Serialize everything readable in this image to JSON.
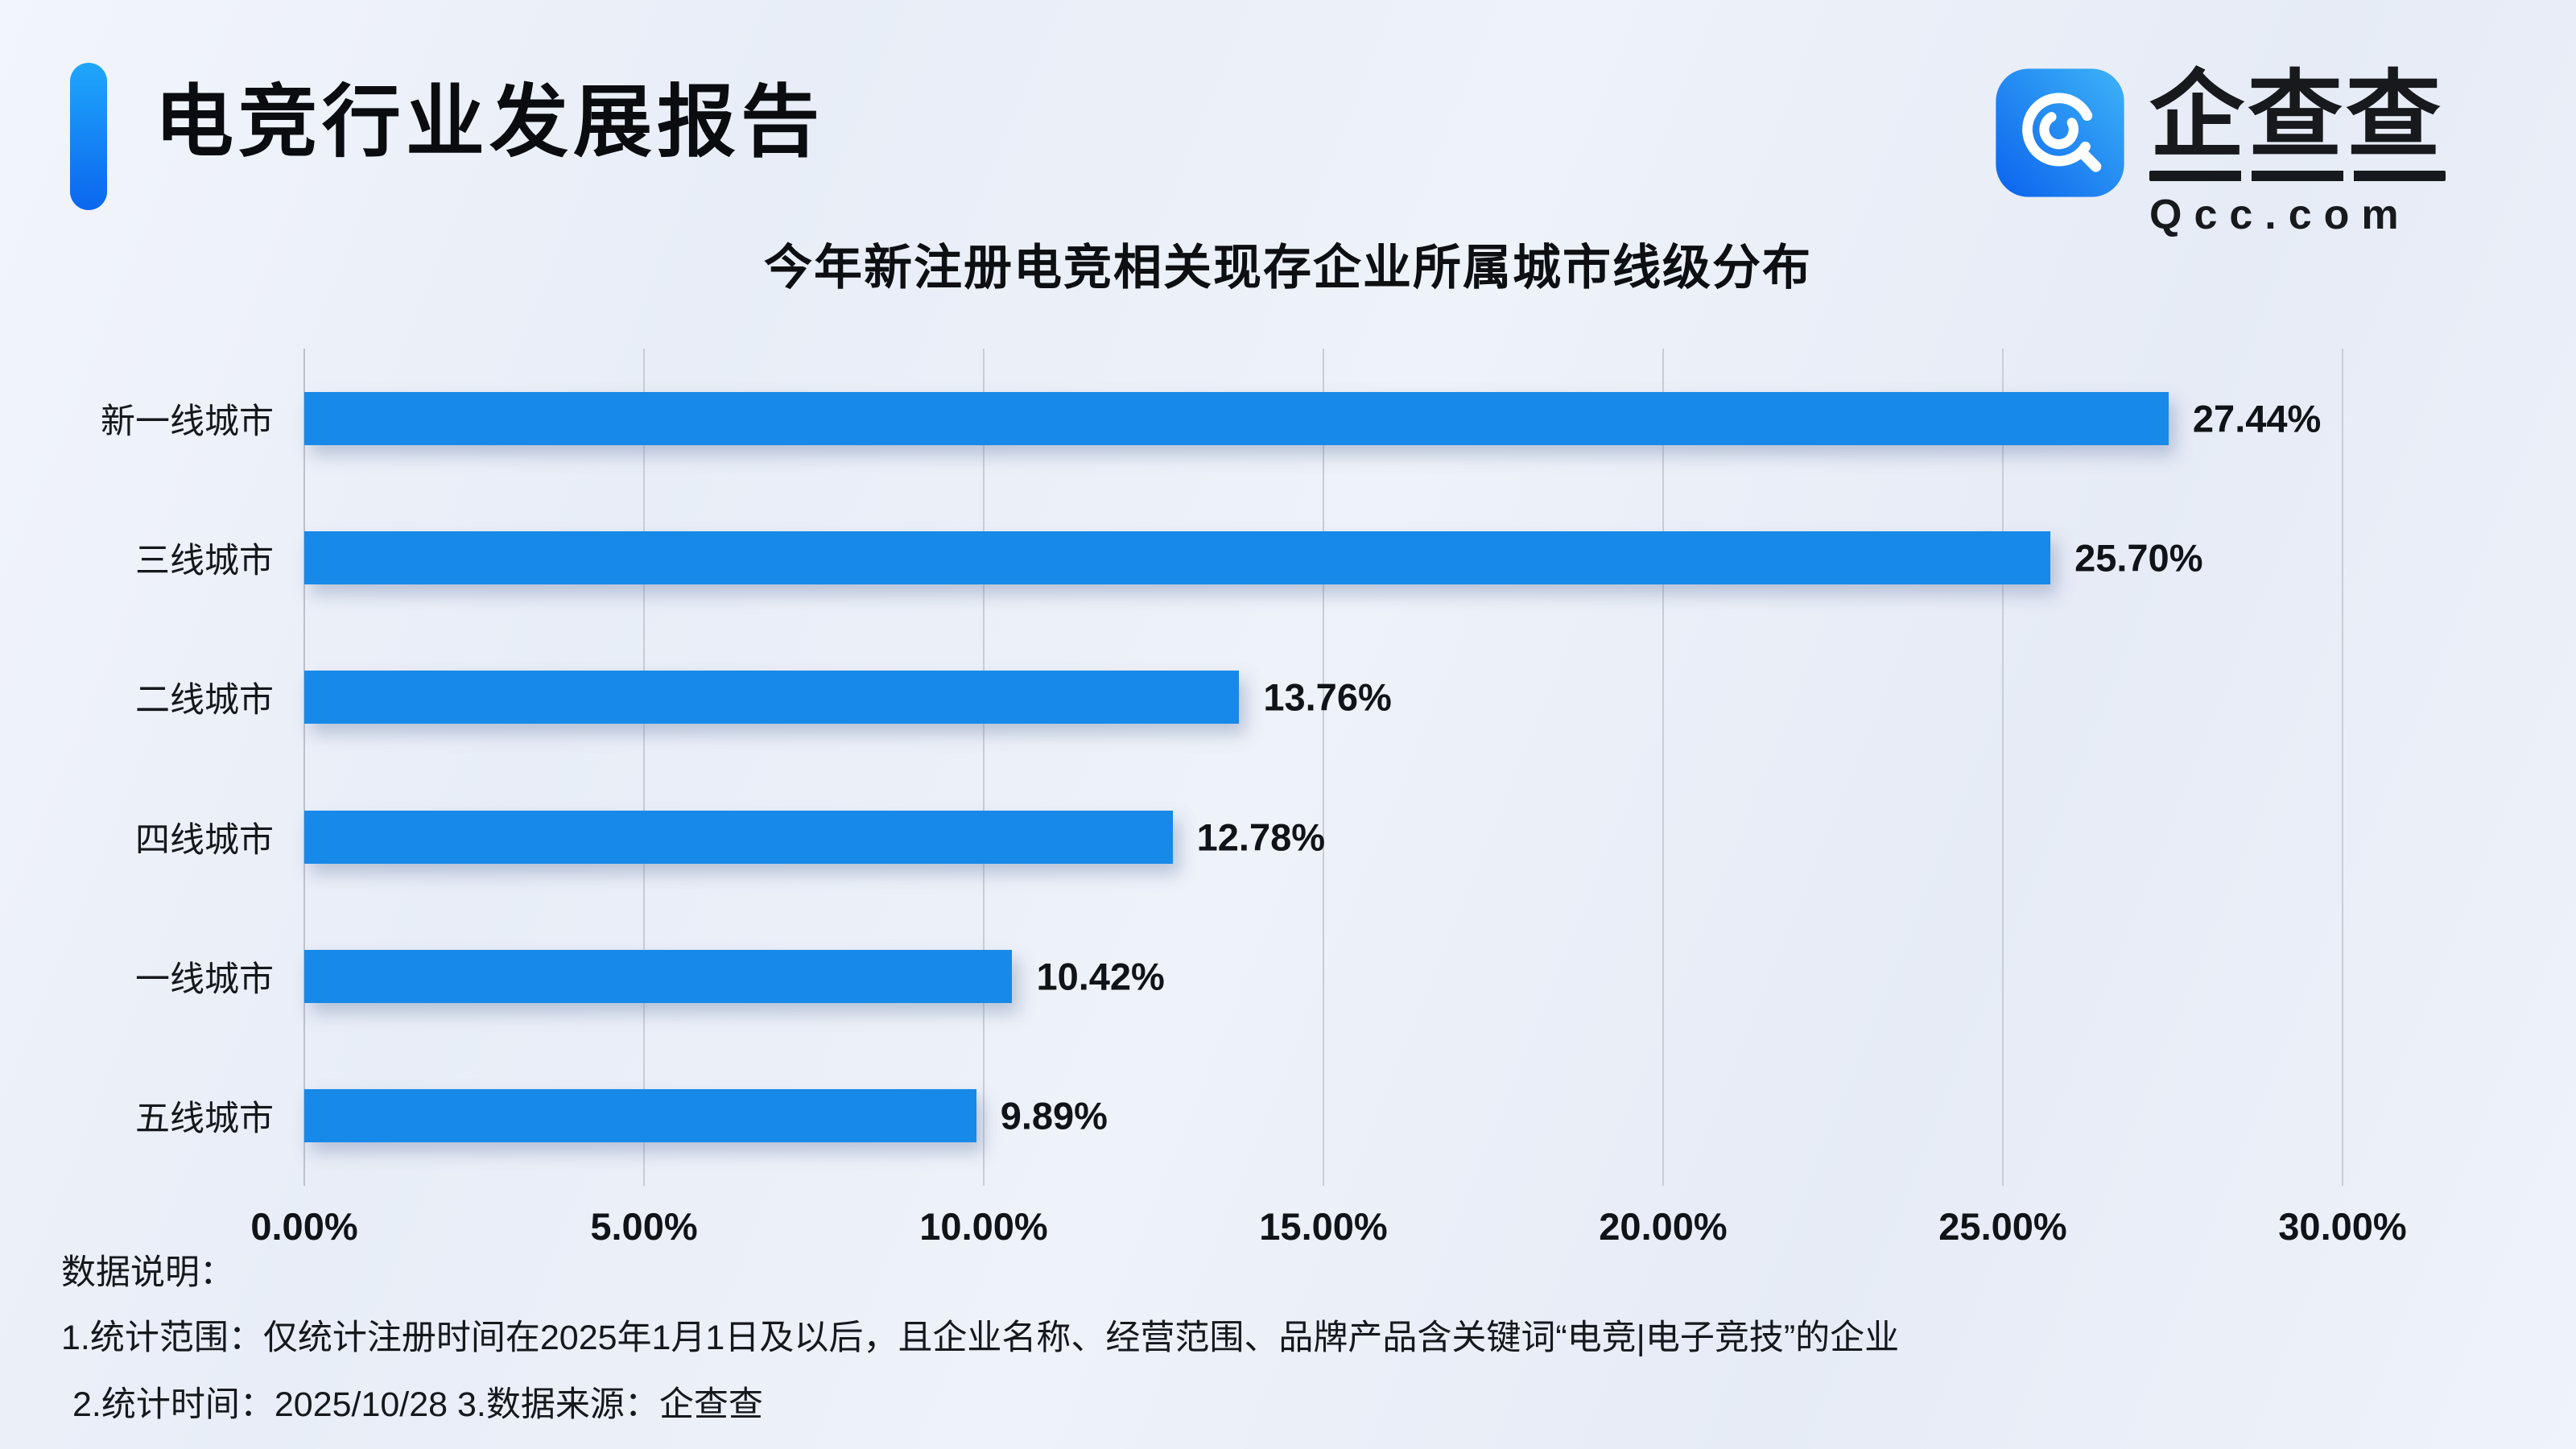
{
  "page": {
    "report_title": "电竞行业发展报告",
    "logo": {
      "brand_text": "企查查",
      "brand_url_text": "Qcc.com"
    },
    "notes": {
      "heading": "数据说明：",
      "line1": "1.统计范围：仅统计注册时间在2025年1月1日及以后，且企业名称、经营范围、品牌产品含关键词“电竞|电子竞技”的企业",
      "line2": "2.统计时间：2025/10/28 3.数据来源：企查查"
    }
  },
  "colors": {
    "bar_blue": "#1789e8",
    "accent_gradient_top": "#1fa7fb",
    "accent_gradient_bottom": "#0b66ee",
    "logo_gradient_light": "#3db3f8",
    "logo_gradient_dark": "#0b63ed",
    "gridline_gray": "#c9cdd6",
    "text_black": "#101317",
    "background_light": "#eef2f9"
  },
  "chart_data": {
    "type": "bar",
    "orientation": "horizontal",
    "title": "今年新注册电竞相关现存企业所属城市线级分布",
    "categories": [
      "新一线城市",
      "三线城市",
      "二线城市",
      "四线城市",
      "一线城市",
      "五线城市"
    ],
    "values": [
      27.44,
      25.7,
      13.76,
      12.78,
      10.42,
      9.89
    ],
    "value_labels": [
      "27.44%",
      "25.70%",
      "13.76%",
      "12.78%",
      "10.42%",
      "9.89%"
    ],
    "x_ticks": [
      "0.00%",
      "5.00%",
      "10.00%",
      "15.00%",
      "20.00%",
      "25.00%",
      "30.00%"
    ],
    "xlim": [
      0,
      30
    ],
    "xlabel": "",
    "ylabel": "",
    "grid": true,
    "legend": false,
    "bar_color": "#1789e8"
  }
}
